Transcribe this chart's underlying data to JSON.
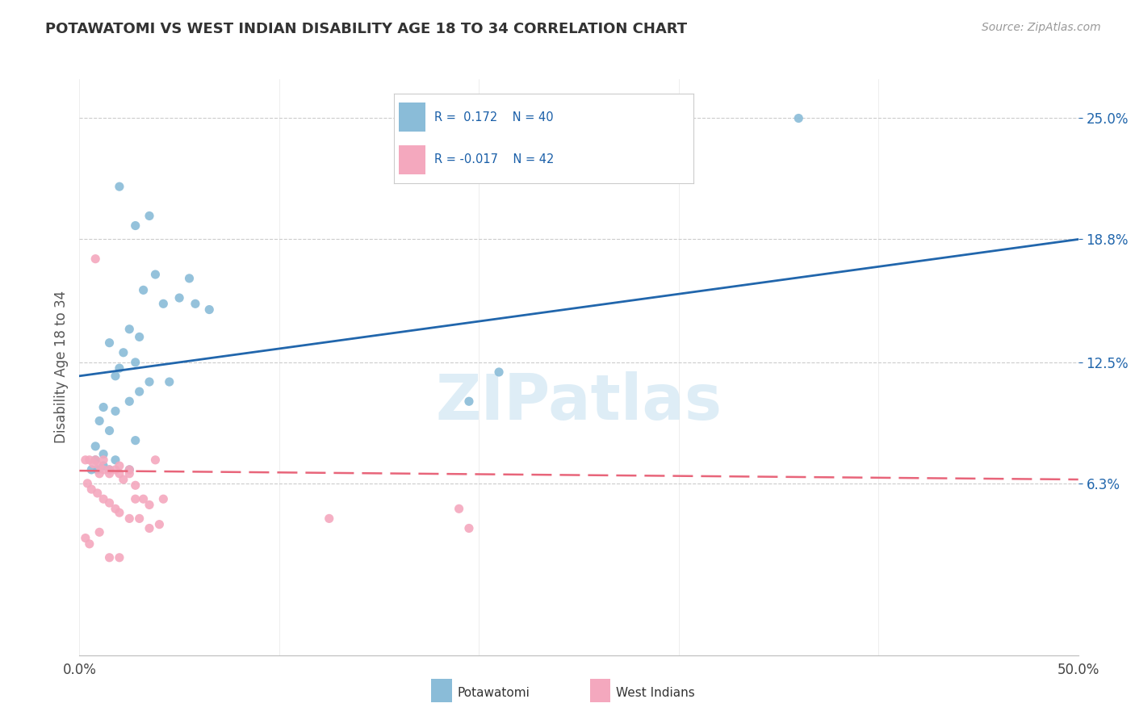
{
  "title": "POTAWATOMI VS WEST INDIAN DISABILITY AGE 18 TO 34 CORRELATION CHART",
  "source": "Source: ZipAtlas.com",
  "ylabel": "Disability Age 18 to 34",
  "xlim": [
    0,
    50
  ],
  "ylim": [
    -2.5,
    27
  ],
  "yticks": [
    6.3,
    12.5,
    18.8,
    25.0
  ],
  "ytick_labels": [
    "6.3%",
    "12.5%",
    "18.8%",
    "25.0%"
  ],
  "color_blue": "#8abcd8",
  "color_pink": "#f4a8be",
  "line_blue": "#2166ac",
  "line_pink": "#e8657a",
  "watermark": "ZIPatlas",
  "blue_line_x0": 0,
  "blue_line_y0": 11.8,
  "blue_line_x1": 50,
  "blue_line_y1": 18.8,
  "pink_line_x0": 0,
  "pink_line_y0": 6.95,
  "pink_line_x1": 50,
  "pink_line_y1": 6.5,
  "blue_points_x": [
    2.0,
    3.5,
    2.8,
    3.8,
    5.5,
    5.0,
    4.2,
    3.2,
    6.5,
    5.8,
    2.5,
    3.0,
    1.5,
    2.2,
    2.8,
    2.0,
    1.8,
    3.5,
    4.5,
    2.5,
    1.2,
    1.8,
    1.0,
    1.5,
    2.8,
    0.8,
    1.2,
    1.8,
    0.8,
    1.2,
    0.6,
    0.9,
    1.5,
    2.5,
    21.0,
    36.0,
    19.5,
    25.5,
    3.0
  ],
  "blue_points_y": [
    21.5,
    20.0,
    19.5,
    17.0,
    16.8,
    15.8,
    15.5,
    16.2,
    15.2,
    15.5,
    14.2,
    13.8,
    13.5,
    13.0,
    12.5,
    12.2,
    11.8,
    11.5,
    11.5,
    10.5,
    10.2,
    10.0,
    9.5,
    9.0,
    8.5,
    8.2,
    7.8,
    7.5,
    7.5,
    7.2,
    7.0,
    7.0,
    7.0,
    7.0,
    12.0,
    25.0,
    10.5,
    24.5,
    11.0
  ],
  "pink_points_x": [
    0.3,
    0.5,
    0.7,
    1.0,
    1.2,
    1.5,
    0.8,
    1.8,
    2.0,
    1.5,
    2.2,
    2.5,
    1.0,
    2.8,
    3.2,
    3.8,
    4.2,
    0.4,
    0.6,
    0.9,
    1.2,
    1.5,
    1.8,
    2.0,
    2.5,
    3.0,
    3.5,
    4.0,
    0.3,
    0.5,
    1.0,
    1.5,
    2.0,
    2.5,
    12.5,
    19.5,
    0.8,
    1.2,
    2.0,
    2.8,
    3.5,
    19.0
  ],
  "pink_points_y": [
    7.5,
    7.5,
    7.3,
    7.2,
    7.0,
    7.0,
    7.5,
    7.0,
    7.2,
    6.8,
    6.5,
    7.0,
    6.8,
    6.2,
    5.5,
    7.5,
    5.5,
    6.3,
    6.0,
    5.8,
    5.5,
    5.3,
    5.0,
    4.8,
    4.5,
    4.5,
    4.0,
    4.2,
    3.5,
    3.2,
    3.8,
    2.5,
    2.5,
    6.8,
    4.5,
    4.0,
    17.8,
    7.5,
    6.8,
    5.5,
    5.2,
    5.0
  ]
}
